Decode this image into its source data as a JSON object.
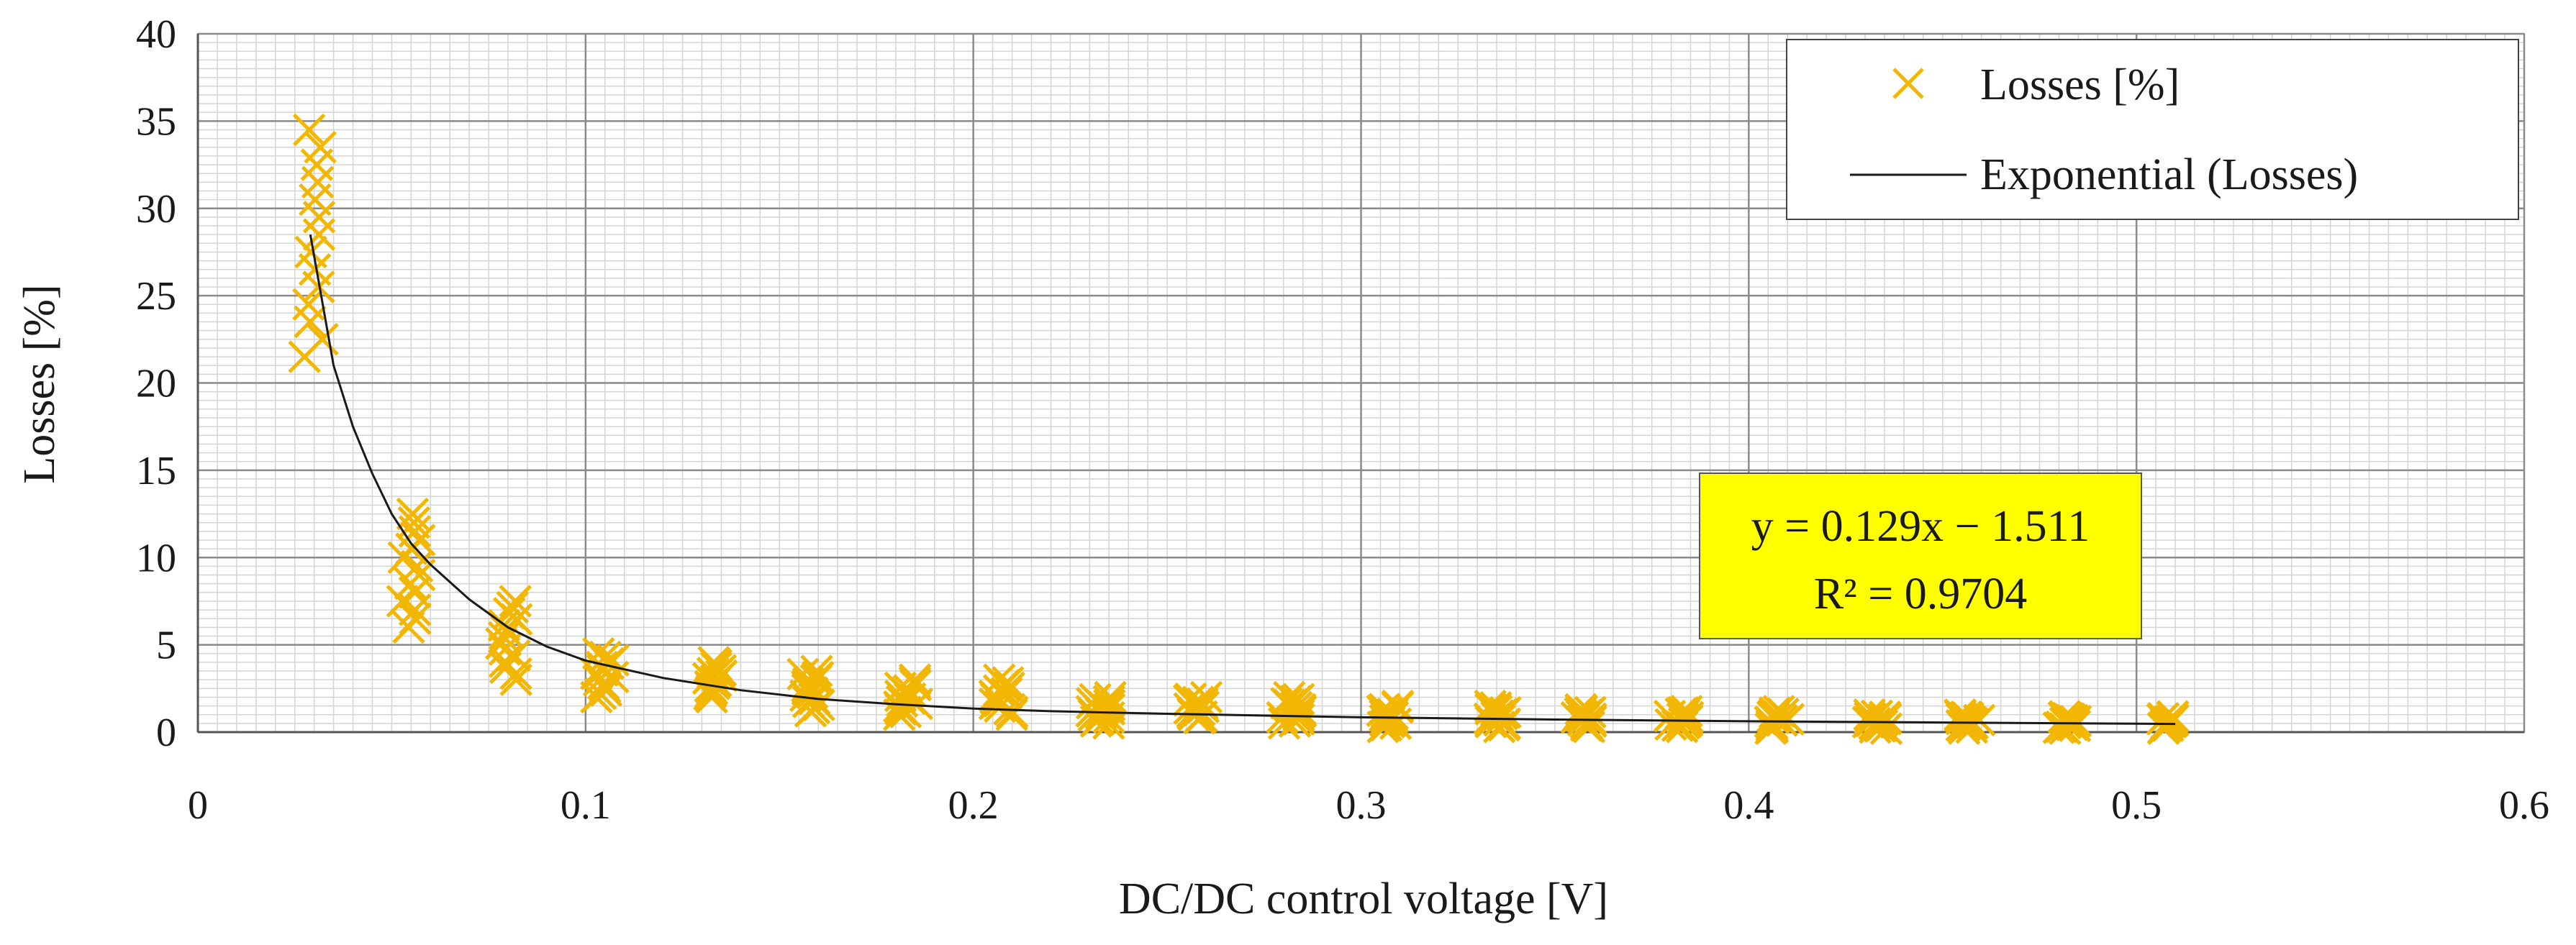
{
  "chart_data": {
    "type": "scatter",
    "xlabel": "DC/DC control voltage [V]",
    "ylabel": "Losses  [%]",
    "xlim": [
      0,
      0.6
    ],
    "ylim": [
      0,
      40
    ],
    "x_ticks": [
      0,
      0.1,
      0.2,
      0.3,
      0.4,
      0.5,
      0.6
    ],
    "x_tick_labels": [
      "0",
      "0.1",
      "0.2",
      "0.3",
      "0.4",
      "0.5",
      "0.6"
    ],
    "y_ticks": [
      0,
      5,
      10,
      15,
      20,
      25,
      30,
      35,
      40
    ],
    "y_tick_labels": [
      "0",
      "5",
      "10",
      "15",
      "20",
      "25",
      "30",
      "35",
      "40"
    ],
    "grid": true,
    "legend_position": "top-right",
    "series": [
      {
        "name": "Losses [%]",
        "kind": "scatter",
        "marker": "x",
        "color": "#F2B705",
        "clusters": [
          {
            "x": 0.03,
            "y_min": 21.5,
            "y_max": 34.5
          },
          {
            "x": 0.055,
            "y_min": 6.0,
            "y_max": 12.5
          },
          {
            "x": 0.08,
            "y_min": 3.0,
            "y_max": 7.5
          },
          {
            "x": 0.105,
            "y_min": 2.0,
            "y_max": 4.5
          },
          {
            "x": 0.133,
            "y_min": 2.0,
            "y_max": 4.0
          },
          {
            "x": 0.158,
            "y_min": 1.2,
            "y_max": 3.5
          },
          {
            "x": 0.183,
            "y_min": 1.0,
            "y_max": 3.0
          },
          {
            "x": 0.208,
            "y_min": 1.0,
            "y_max": 3.0
          },
          {
            "x": 0.233,
            "y_min": 0.5,
            "y_max": 2.0
          },
          {
            "x": 0.258,
            "y_min": 0.8,
            "y_max": 2.0
          },
          {
            "x": 0.282,
            "y_min": 0.5,
            "y_max": 2.0
          },
          {
            "x": 0.307,
            "y_min": 0.3,
            "y_max": 1.5
          },
          {
            "x": 0.335,
            "y_min": 0.3,
            "y_max": 1.5
          },
          {
            "x": 0.358,
            "y_min": 0.3,
            "y_max": 1.3
          },
          {
            "x": 0.382,
            "y_min": 0.3,
            "y_max": 1.2
          },
          {
            "x": 0.408,
            "y_min": 0.2,
            "y_max": 1.2
          },
          {
            "x": 0.433,
            "y_min": 0.2,
            "y_max": 1.0
          },
          {
            "x": 0.457,
            "y_min": 0.2,
            "y_max": 1.0
          },
          {
            "x": 0.482,
            "y_min": 0.2,
            "y_max": 0.9
          },
          {
            "x": 0.507,
            "y_min": 0.2,
            "y_max": 0.9
          }
        ]
      },
      {
        "name": "Exponential (Losses)",
        "kind": "line",
        "color": "#1a1a1a",
        "x": [
          0.029,
          0.035,
          0.04,
          0.045,
          0.05,
          0.055,
          0.06,
          0.07,
          0.08,
          0.09,
          0.1,
          0.12,
          0.14,
          0.16,
          0.18,
          0.2,
          0.22,
          0.25,
          0.3,
          0.35,
          0.4,
          0.45,
          0.5,
          0.51
        ],
        "y": [
          28.5,
          21.0,
          17.5,
          14.8,
          12.5,
          10.8,
          9.6,
          7.6,
          6.0,
          4.9,
          4.1,
          3.1,
          2.4,
          1.9,
          1.6,
          1.35,
          1.2,
          1.05,
          0.85,
          0.72,
          0.62,
          0.55,
          0.48,
          0.47
        ]
      }
    ],
    "annotation": {
      "line1": "y = 0.129x − 1.511",
      "line2": "R² = 0.9704",
      "background": "#FFFF00"
    }
  }
}
